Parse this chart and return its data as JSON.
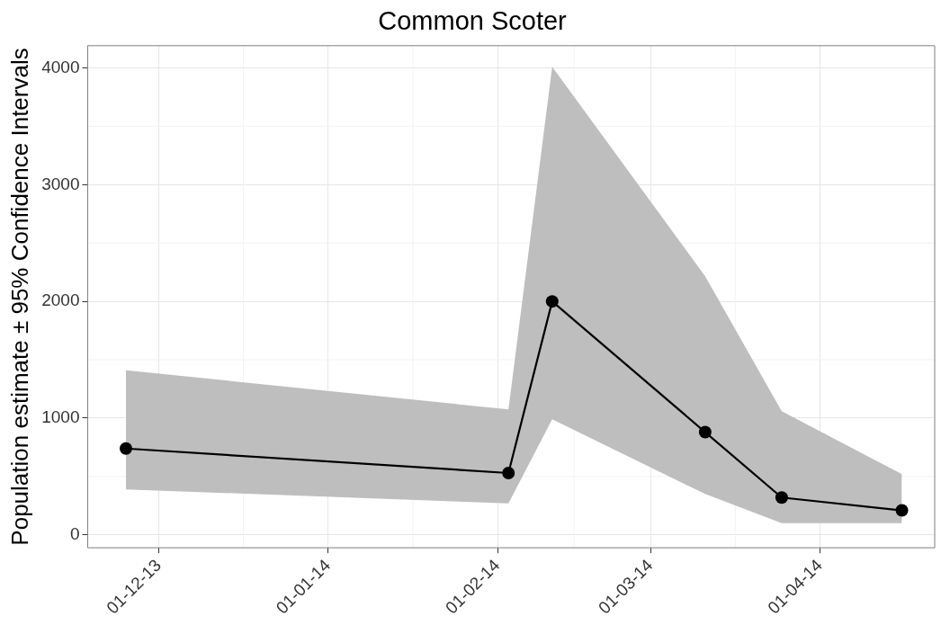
{
  "chart_data": {
    "type": "line",
    "title": "Common Scoter",
    "ylabel": "Population estimate ± 95% Confidence Intervals",
    "x": [
      "2013-11-25",
      "2014-02-03",
      "2014-02-11",
      "2014-03-11",
      "2014-03-25",
      "2014-04-16"
    ],
    "series": [
      {
        "color": "#000000",
        "values": [
          740,
          530,
          2000,
          880,
          320,
          210
        ],
        "lower": [
          390,
          270,
          990,
          350,
          100,
          100
        ],
        "upper": [
          1410,
          1075,
          4010,
          2215,
          1060,
          520
        ]
      }
    ],
    "xlim": [
      "2013-11-18",
      "2014-04-22"
    ],
    "xticks": [
      {
        "value": "2013-12-01",
        "label": "01-12-13"
      },
      {
        "value": "2014-01-01",
        "label": "01-01-14"
      },
      {
        "value": "2014-02-01",
        "label": "01-02-14"
      },
      {
        "value": "2014-03-01",
        "label": "01-03-14"
      },
      {
        "value": "2014-04-01",
        "label": "01-04-14"
      }
    ],
    "ylim": [
      -110,
      4190
    ],
    "yticks": [
      0,
      1000,
      2000,
      3000,
      4000
    ],
    "grid": true,
    "legend": false,
    "marker": "circle",
    "line_style": "solid"
  }
}
